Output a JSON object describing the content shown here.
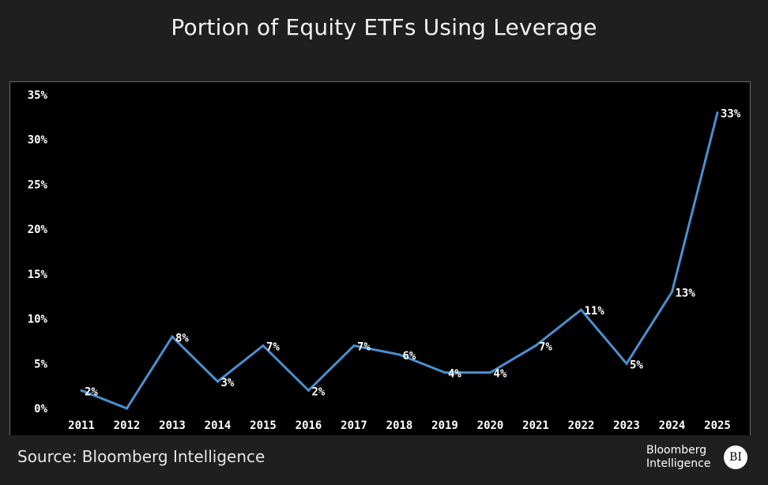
{
  "colors": {
    "background": "#1f1f1f",
    "plot_background": "#000000",
    "line": "#4a90d0",
    "text": "#ffffff"
  },
  "footer": {
    "source": "Source: Bloomberg Intelligence",
    "logo_line1": "Bloomberg",
    "logo_line2": "Intelligence",
    "logo_badge": "BI"
  },
  "chart_data": {
    "type": "line",
    "title": "Portion of Equity ETFs Using Leverage",
    "xlabel": "",
    "ylabel": "",
    "categories": [
      "2011",
      "2012",
      "2013",
      "2014",
      "2015",
      "2016",
      "2017",
      "2018",
      "2019",
      "2020",
      "2021",
      "2022",
      "2023",
      "2024",
      "2025"
    ],
    "series": [
      {
        "values": [
          2,
          0,
          8,
          3,
          7,
          2,
          7,
          6,
          4,
          4,
          7,
          11,
          5,
          13,
          33
        ]
      }
    ],
    "data_labels": [
      "2%",
      "",
      "8%",
      "3%",
      "7%",
      "2%",
      "7%",
      "6%",
      "4%",
      "4%",
      "7%",
      "11%",
      "5%",
      "13%",
      "33%"
    ],
    "y_ticks": [
      "0%",
      "5%",
      "10%",
      "15%",
      "20%",
      "25%",
      "30%",
      "35%"
    ],
    "ylim": [
      0,
      35
    ],
    "grid": false,
    "legend": "none"
  }
}
